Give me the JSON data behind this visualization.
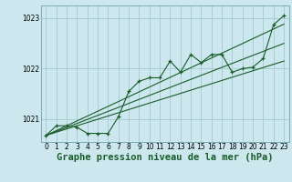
{
  "background_color": "#cce8ee",
  "plot_bg_color": "#cce8ee",
  "line_color": "#1a5c2a",
  "grid_color": "#aacdd4",
  "xlabel": "Graphe pression niveau de la mer (hPa)",
  "xlabel_fontsize": 7.5,
  "ylim": [
    1020.55,
    1023.25
  ],
  "xlim": [
    -0.5,
    23.5
  ],
  "yticks": [
    1021,
    1022,
    1023
  ],
  "xticks": [
    0,
    1,
    2,
    3,
    4,
    5,
    6,
    7,
    8,
    9,
    10,
    11,
    12,
    13,
    14,
    15,
    16,
    17,
    18,
    19,
    20,
    21,
    22,
    23
  ],
  "main_x": [
    0,
    1,
    2,
    3,
    4,
    5,
    6,
    7,
    8,
    9,
    10,
    11,
    12,
    13,
    14,
    15,
    16,
    17,
    18,
    19,
    20,
    21,
    22,
    23
  ],
  "main_y": [
    1020.68,
    1020.87,
    1020.87,
    1020.84,
    1020.72,
    1020.72,
    1020.72,
    1021.05,
    1021.55,
    1021.75,
    1021.82,
    1021.82,
    1022.15,
    1021.93,
    1022.28,
    1022.12,
    1022.28,
    1022.28,
    1021.93,
    1022.0,
    1022.03,
    1022.2,
    1022.87,
    1023.05
  ],
  "line1_x": [
    0,
    23
  ],
  "line1_y": [
    1020.68,
    1022.15
  ],
  "line2_x": [
    0,
    23
  ],
  "line2_y": [
    1020.68,
    1022.5
  ],
  "line3_x": [
    0,
    23
  ],
  "line3_y": [
    1020.68,
    1022.88
  ]
}
